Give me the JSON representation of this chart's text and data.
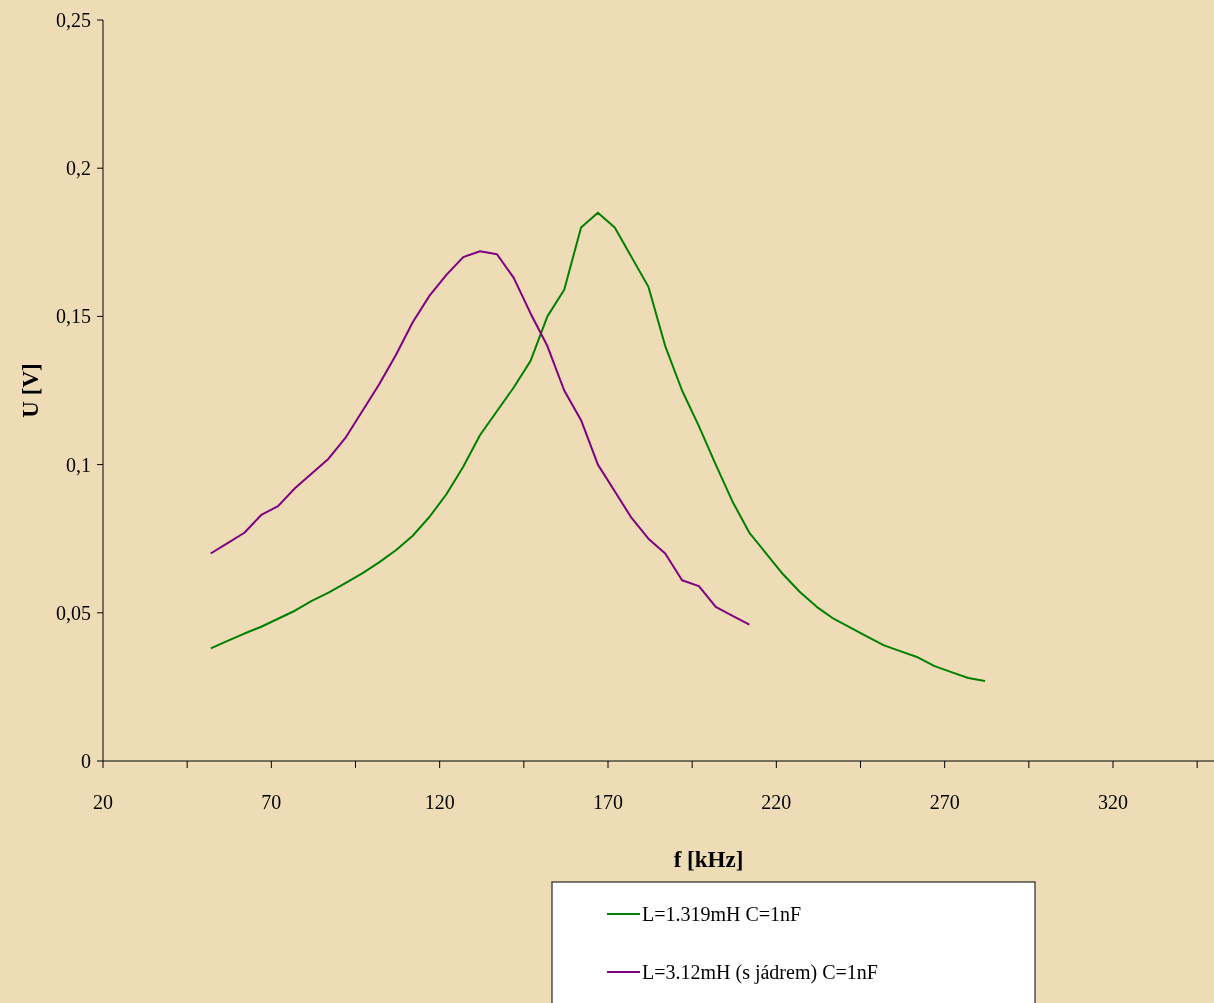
{
  "chart_data": {
    "type": "line",
    "xlabel": "f [kHz]",
    "ylabel": "U [V]",
    "xlim": [
      20,
      350
    ],
    "xticks": [
      20,
      {
        "value": 45,
        "label": null
      },
      70,
      {
        "value": 95,
        "label": null
      },
      120,
      {
        "value": 145,
        "label": null
      },
      170,
      {
        "value": 195,
        "label": null
      },
      220,
      {
        "value": 245,
        "label": null
      },
      270,
      {
        "value": 295,
        "label": null
      },
      320,
      {
        "value": 345,
        "label": null
      }
    ],
    "ylim": [
      0,
      0.25
    ],
    "yticks": [
      0,
      {
        "value": 0.05,
        "label": "0,05"
      },
      {
        "value": 0.1,
        "label": "0,1"
      },
      {
        "value": 0.15,
        "label": "0,15"
      },
      {
        "value": 0.2,
        "label": "0,2"
      },
      {
        "value": 0.25,
        "label": "0,25"
      }
    ],
    "grid": false,
    "legend": "bottom right",
    "marker": "none",
    "line_style": "solid",
    "series": [
      {
        "name": "L=1.319mH C=1nF",
        "color": "#008000",
        "x": [
          52,
          57,
          62,
          67,
          72,
          77,
          82,
          87,
          92,
          97,
          102,
          107,
          112,
          117,
          122,
          127,
          132,
          137,
          142,
          147,
          152,
          157,
          162,
          167,
          172,
          177,
          182,
          187,
          192,
          197,
          202,
          207,
          212,
          217,
          222,
          227,
          232,
          237,
          242,
          247,
          252,
          257,
          262,
          267,
          272,
          277,
          282
        ],
        "values": [
          0.038,
          0.0405,
          0.043,
          0.0453,
          0.048,
          0.0507,
          0.054,
          0.0568,
          0.06,
          0.0633,
          0.067,
          0.0711,
          0.076,
          0.0824,
          0.09,
          0.0993,
          0.11,
          0.118,
          0.126,
          0.135,
          0.15,
          0.159,
          0.18,
          0.185,
          0.18,
          0.17,
          0.16,
          0.14,
          0.125,
          0.113,
          0.1,
          0.0875,
          0.077,
          0.07,
          0.063,
          0.057,
          0.052,
          0.048,
          0.045,
          0.042,
          0.039,
          0.037,
          0.035,
          0.032,
          0.03,
          0.028,
          0.027
        ]
      },
      {
        "name": "L=3.12mH (s jádrem) C=1nF",
        "color": "#800080",
        "x": [
          52,
          57,
          62,
          67,
          72,
          77,
          82,
          87,
          92,
          97,
          102,
          107,
          112,
          117,
          122,
          127,
          132,
          137,
          142,
          147,
          152,
          157,
          162,
          167,
          172,
          177,
          182,
          187,
          192,
          197,
          202,
          207,
          212
        ],
        "values": [
          0.07,
          0.0735,
          0.077,
          0.083,
          0.086,
          0.092,
          0.097,
          0.102,
          0.109,
          0.118,
          0.127,
          0.137,
          0.148,
          0.157,
          0.164,
          0.17,
          0.172,
          0.171,
          0.163,
          0.151,
          0.14,
          0.125,
          0.115,
          0.1,
          0.091,
          0.082,
          0.075,
          0.07,
          0.061,
          0.059,
          0.052,
          0.049,
          0.046
        ]
      }
    ]
  }
}
